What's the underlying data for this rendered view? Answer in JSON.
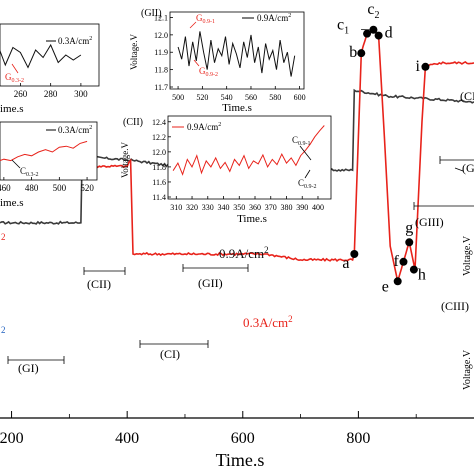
{
  "chart_data": {
    "main": {
      "type": "line",
      "xlabel": "Time.s",
      "xticks": [
        200,
        400,
        600,
        800
      ],
      "xlim": [
        180,
        1000
      ],
      "ylim": [
        0,
        100
      ],
      "series": [
        {
          "name": "0.9A/cm",
          "color": "#3a3a3a",
          "x": [
            180,
            320,
            322,
            410,
            480,
            560,
            640,
            700,
            760,
            790,
            793,
            850,
            900,
            1000
          ],
          "y": [
            48,
            48,
            65,
            64,
            62.5,
            62.5,
            61.5,
            61.5,
            61.5,
            61.5,
            82,
            80.5,
            80,
            79
          ]
        },
        {
          "name": "0.3A/cm",
          "color": "#e8231b",
          "x": [
            180,
            400,
            406,
            410,
            500,
            640,
            700,
            790,
            793,
            805,
            815,
            826,
            835,
            845,
            855,
            868,
            872,
            880,
            888,
            898,
            910,
            916,
            940,
            1000
          ],
          "y": [
            62.5,
            62.5,
            64,
            40,
            40,
            40,
            38.5,
            38.5,
            40,
            91.5,
            96.5,
            97.5,
            96,
            70,
            42,
            33,
            35,
            39,
            43,
            36,
            74,
            88,
            89,
            89
          ]
        }
      ],
      "point_labels": [
        {
          "label": "a",
          "x": 793,
          "y": 40
        },
        {
          "label": "b",
          "x": 805,
          "y": 91.5
        },
        {
          "label": "c",
          "sub": "1",
          "x": 815,
          "y": 96.5
        },
        {
          "label": "c",
          "sub": "2",
          "x": 826,
          "y": 97.5
        },
        {
          "label": "d",
          "x": 835,
          "y": 96
        },
        {
          "label": "e",
          "x": 868,
          "y": 33
        },
        {
          "label": "f",
          "x": 878,
          "y": 38
        },
        {
          "label": "g",
          "x": 888,
          "y": 43
        },
        {
          "label": "h",
          "x": 896,
          "y": 36
        },
        {
          "label": "i",
          "x": 916,
          "y": 88
        }
      ],
      "series_labels": [
        {
          "text": "0.9A/cm",
          "sup": "2",
          "color": "#111111"
        },
        {
          "text": "0.3A/cm",
          "sup": "2",
          "color": "#e8231b"
        },
        {
          "text": "2",
          "color": "#e8231b"
        },
        {
          "text": "2",
          "color": "#1f5fbf"
        }
      ],
      "region_labels": [
        "(GI)",
        "(CII)",
        "(GII)",
        "(CI)",
        "(GIII)",
        "(CIII)",
        "(CI",
        "(G"
      ],
      "right_axis_label": "Voltage.V"
    },
    "insets": [
      {
        "id": "top-left",
        "type": "line",
        "legend": "0.3A/cm",
        "legend_sup": "2",
        "xticks": [
          260,
          280,
          300
        ],
        "xlabel": "ime.s",
        "xlim": [
          220,
          310
        ],
        "annotation": {
          "text": "G",
          "sub": "0.3-2"
        },
        "series_x": [
          225,
          230,
          235,
          240,
          245,
          250,
          255,
          260,
          265,
          270,
          275,
          280,
          285,
          290,
          295,
          300
        ],
        "series_y": [
          0.5,
          0.6,
          0.35,
          0.55,
          0.7,
          0.3,
          0.65,
          0.55,
          0.25,
          0.6,
          0.45,
          0.7,
          0.35,
          0.5,
          0.4,
          0.5
        ]
      },
      {
        "id": "GII",
        "type": "line",
        "panel": "(GII)",
        "legend": "0.9A/cm",
        "legend_sup": "2",
        "xlabel": "Time.s",
        "ylabel": "Voltage.V",
        "xticks": [
          500,
          520,
          540,
          560,
          580,
          600
        ],
        "yticks": [
          11.7,
          11.8,
          11.9,
          12.0,
          12.1
        ],
        "xlim": [
          495,
          602
        ],
        "ylim": [
          11.7,
          12.12
        ],
        "annotations": [
          {
            "text": "G",
            "sub": "0.9-1"
          },
          {
            "text": "G",
            "sub": "0.9-2"
          }
        ],
        "series_x": [
          500,
          503,
          506,
          509,
          512,
          515,
          518,
          521,
          524,
          527,
          530,
          533,
          536,
          539,
          542,
          545,
          548,
          551,
          554,
          557,
          560,
          563,
          566,
          569,
          572,
          575,
          578,
          581,
          584,
          587,
          590,
          593,
          596
        ],
        "series_y": [
          11.93,
          11.86,
          11.99,
          11.82,
          11.96,
          11.85,
          12.02,
          11.9,
          11.8,
          11.97,
          11.84,
          11.92,
          11.88,
          11.99,
          11.83,
          11.95,
          11.89,
          11.81,
          11.96,
          11.87,
          12.0,
          11.84,
          11.93,
          11.78,
          11.95,
          11.86,
          11.91,
          11.8,
          11.97,
          11.84,
          11.9,
          11.76,
          11.88
        ]
      },
      {
        "id": "left-mid",
        "type": "line",
        "legend": "0.3A/cm",
        "legend_sup": "2",
        "xticks": [
          460,
          480,
          500,
          520
        ],
        "xlabel": "ime.s",
        "xlim": [
          450,
          525
        ],
        "annotation": {
          "text": "C",
          "sub": "0.3-2"
        },
        "series_x": [
          455,
          460,
          465,
          470,
          475,
          480,
          485,
          490,
          495,
          500,
          505,
          510,
          515,
          520
        ],
        "series_y": [
          0.3,
          0.35,
          0.32,
          0.4,
          0.45,
          0.42,
          0.5,
          0.55,
          0.5,
          0.6,
          0.62,
          0.58,
          0.68,
          0.72
        ]
      },
      {
        "id": "CII",
        "type": "line",
        "panel": "(CII)",
        "legend": "0.9A/cm",
        "legend_sup": "2",
        "xlabel": "Time.s",
        "ylabel": "Voltage.V",
        "xticks": [
          310,
          320,
          330,
          340,
          350,
          360,
          370,
          380,
          390,
          400
        ],
        "yticks": [
          11.4,
          11.6,
          11.8,
          12.0,
          12.2,
          12.4
        ],
        "xlim": [
          306,
          407
        ],
        "ylim": [
          11.4,
          12.45
        ],
        "annotations": [
          {
            "text": "C",
            "sub": "0.9-1"
          },
          {
            "text": "C",
            "sub": "0.9-2"
          }
        ],
        "series_x": [
          308,
          311,
          314,
          317,
          320,
          323,
          326,
          329,
          332,
          335,
          338,
          341,
          344,
          347,
          350,
          353,
          356,
          359,
          362,
          365,
          368,
          371,
          374,
          377,
          380,
          383,
          386,
          389,
          392,
          395,
          398,
          401,
          404
        ],
        "series_y": [
          11.75,
          11.85,
          11.7,
          11.9,
          11.8,
          11.95,
          11.72,
          11.88,
          11.8,
          11.92,
          11.78,
          11.86,
          11.74,
          11.9,
          11.82,
          11.95,
          11.78,
          11.88,
          11.84,
          11.96,
          11.8,
          11.9,
          11.83,
          11.97,
          11.85,
          11.92,
          11.82,
          11.95,
          12.02,
          12.1,
          12.2,
          12.28,
          12.35
        ]
      }
    ]
  }
}
